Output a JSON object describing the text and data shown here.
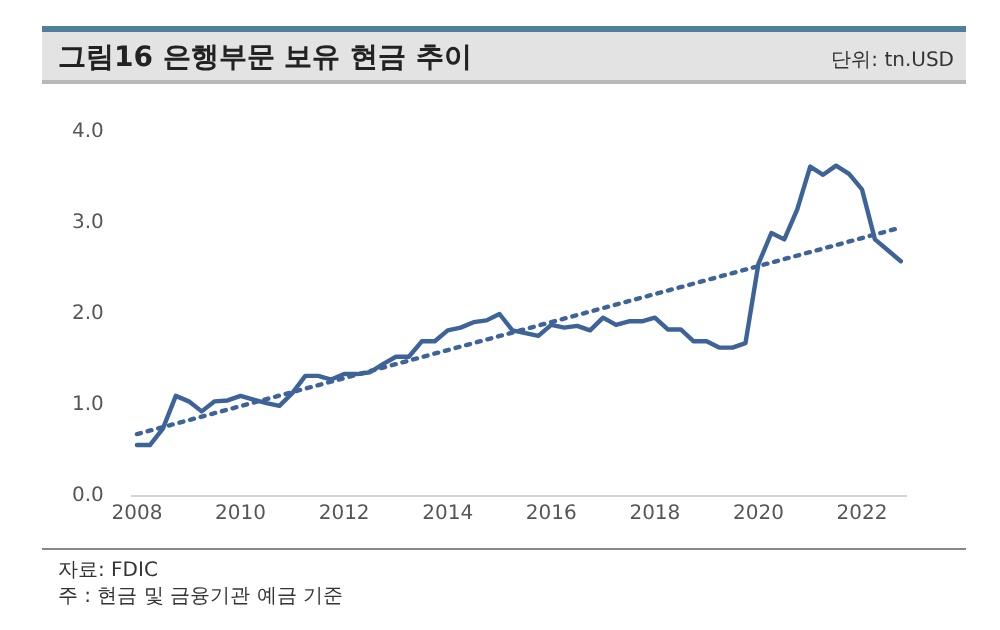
{
  "chart_data": {
    "type": "line",
    "title": "그림16 은행부문 보유 현금 추이",
    "annotations": [
      "단위: tn.USD",
      "자료: FDIC",
      "주 : 현금 및 금융기관 예금 기준"
    ],
    "x": [
      2008,
      2008.25,
      2008.5,
      2008.75,
      2009,
      2009.25,
      2009.5,
      2009.75,
      2010,
      2010.25,
      2010.5,
      2010.75,
      2011,
      2011.25,
      2011.5,
      2011.75,
      2012,
      2012.25,
      2012.5,
      2012.75,
      2013,
      2013.25,
      2013.5,
      2013.75,
      2014,
      2014.25,
      2014.5,
      2014.75,
      2015,
      2015.25,
      2015.5,
      2015.75,
      2016,
      2016.25,
      2016.5,
      2016.75,
      2017,
      2017.25,
      2017.5,
      2017.75,
      2018,
      2018.25,
      2018.5,
      2018.75,
      2019,
      2019.25,
      2019.5,
      2019.75,
      2020,
      2020.25,
      2020.5,
      2020.75,
      2021,
      2021.25,
      2021.5,
      2021.75,
      2022,
      2022.25,
      2022.5,
      2022.75
    ],
    "series": [
      {
        "type": "line",
        "color": "#3d6399",
        "line_style": "solid",
        "values": [
          0.56,
          0.56,
          0.74,
          1.1,
          1.04,
          0.93,
          1.04,
          1.05,
          1.1,
          1.06,
          1.02,
          0.99,
          1.13,
          1.32,
          1.32,
          1.28,
          1.34,
          1.34,
          1.36,
          1.45,
          1.53,
          1.53,
          1.7,
          1.7,
          1.82,
          1.85,
          1.91,
          1.93,
          2.0,
          1.82,
          1.79,
          1.76,
          1.88,
          1.85,
          1.87,
          1.82,
          1.96,
          1.88,
          1.92,
          1.92,
          1.96,
          1.83,
          1.83,
          1.7,
          1.7,
          1.63,
          1.63,
          1.68,
          2.55,
          2.89,
          2.82,
          3.15,
          3.62,
          3.53,
          3.63,
          3.54,
          3.37,
          2.82,
          2.7,
          2.58
        ]
      },
      {
        "type": "line",
        "color": "#3d6399",
        "line_style": "dotted",
        "x": [
          2008,
          2022.75
        ],
        "values": [
          0.68,
          2.95
        ]
      }
    ],
    "xlim": [
      2007.9,
      2022.85
    ],
    "xticks": [
      2008,
      2010,
      2012,
      2014,
      2016,
      2018,
      2020,
      2022
    ],
    "ylim": [
      0,
      4
    ],
    "yticks": [
      {
        "value": 0,
        "label": "0.0"
      },
      {
        "value": 1,
        "label": "1.0"
      },
      {
        "value": 2,
        "label": "2.0"
      },
      {
        "value": 3,
        "label": "3.0"
      },
      {
        "value": 4,
        "label": "4.0"
      }
    ],
    "grid": false,
    "legend": false,
    "marker": "none"
  }
}
